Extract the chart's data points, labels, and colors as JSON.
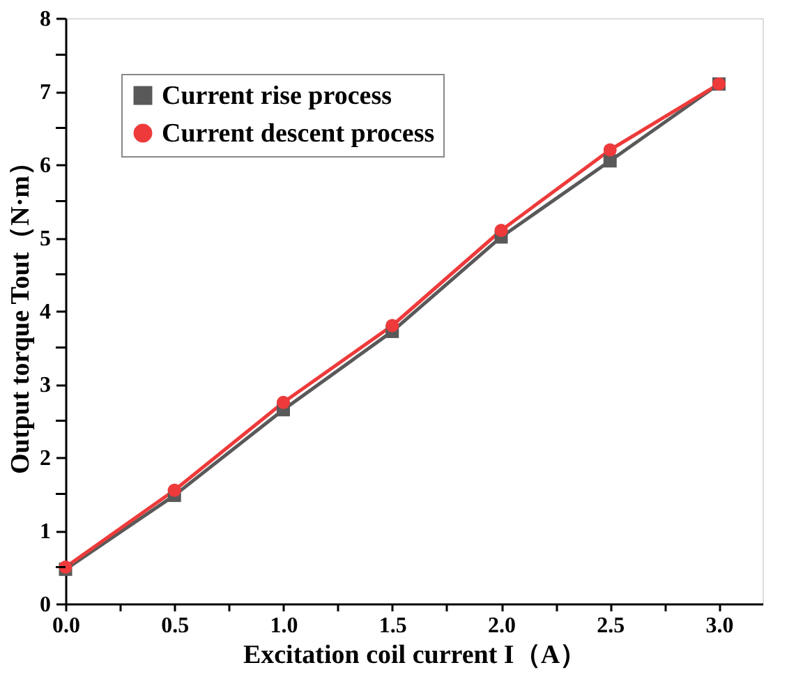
{
  "chart_data": {
    "type": "line",
    "xlabel": "Excitation coil current  I（A）",
    "ylabel": "Output torque  Tout（N·m）",
    "x": [
      0,
      0.5,
      1.0,
      1.5,
      2.0,
      2.5,
      3.0
    ],
    "series": [
      {
        "name": "Current rise process",
        "color": "#595959",
        "marker": "square",
        "values": [
          0.47,
          1.48,
          2.65,
          3.72,
          5.01,
          6.05,
          7.1
        ]
      },
      {
        "name": "Current descent process",
        "color": "#ee3a3a",
        "marker": "circle",
        "values": [
          0.5,
          1.55,
          2.75,
          3.8,
          5.1,
          6.2,
          7.1
        ]
      }
    ],
    "xlim": [
      0,
      3.2
    ],
    "xticks": [
      {
        "value": 0,
        "label": "0.0"
      },
      {
        "value": 0.25,
        "label": null
      },
      {
        "value": 0.5,
        "label": "0.5"
      },
      {
        "value": 0.75,
        "label": null
      },
      {
        "value": 1,
        "label": "1.0"
      },
      {
        "value": 1.25,
        "label": null
      },
      {
        "value": 1.5,
        "label": "1.5"
      },
      {
        "value": 1.75,
        "label": null
      },
      {
        "value": 2,
        "label": "2.0"
      },
      {
        "value": 2.25,
        "label": null
      },
      {
        "value": 2.5,
        "label": "2.5"
      },
      {
        "value": 2.75,
        "label": null
      },
      {
        "value": 3,
        "label": "3.0"
      }
    ],
    "ylim": [
      0,
      8
    ],
    "yticks": [
      0,
      {
        "value": 0.5,
        "label": null
      },
      1,
      {
        "value": 1.5,
        "label": null
      },
      2,
      {
        "value": 2.5,
        "label": null
      },
      3,
      {
        "value": 3.5,
        "label": null
      },
      4,
      {
        "value": 4.5,
        "label": null
      },
      5,
      {
        "value": 5.5,
        "label": null
      },
      6,
      {
        "value": 6.5,
        "label": null
      },
      7,
      {
        "value": 7.5,
        "label": null
      },
      8
    ],
    "grid": false,
    "legend": "top left",
    "line_style": "solid"
  }
}
